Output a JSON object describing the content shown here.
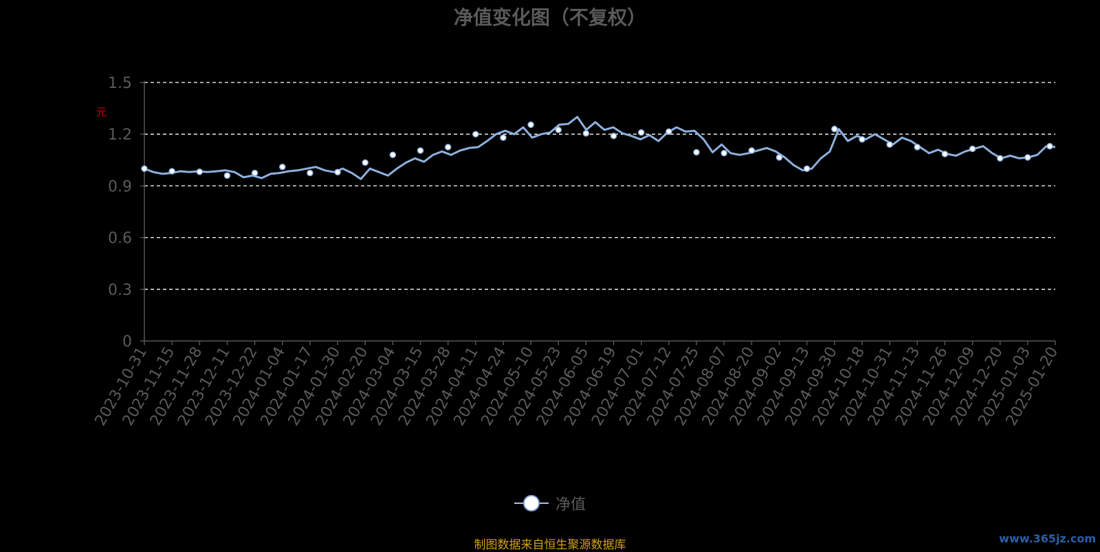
{
  "chart_data": {
    "type": "line",
    "title": "净值变化图（不复权）",
    "ylabel": "元",
    "ylim": [
      0,
      1.5
    ],
    "yticks": [
      "0",
      "0.3",
      "0.6",
      "0.9",
      "1.2",
      "1.5"
    ],
    "grid": true,
    "legend_position": "bottom",
    "x_tick_labels": [
      "2023-10-31",
      "2023-11-15",
      "2023-11-28",
      "2023-12-11",
      "2023-12-22",
      "2024-01-04",
      "2024-01-17",
      "2024-01-30",
      "2024-02-20",
      "2024-03-04",
      "2024-03-15",
      "2024-03-28",
      "2024-04-11",
      "2024-04-24",
      "2024-05-10",
      "2024-05-23",
      "2024-06-05",
      "2024-06-19",
      "2024-07-01",
      "2024-07-12",
      "2024-07-25",
      "2024-08-07",
      "2024-08-20",
      "2024-09-02",
      "2024-09-13",
      "2024-09-30",
      "2024-10-18",
      "2024-10-31",
      "2024-11-13",
      "2024-11-26",
      "2024-12-09",
      "2024-12-20",
      "2025-01-03",
      "2025-01-20"
    ],
    "series": [
      {
        "name": "净值",
        "marker_values": [
          1.0,
          0.985,
          0.982,
          0.96,
          0.975,
          1.01,
          0.975,
          0.98,
          1.035,
          1.08,
          1.105,
          1.125,
          1.2,
          1.18,
          1.255,
          1.225,
          1.205,
          1.19,
          1.21,
          1.215,
          1.095,
          1.09,
          1.105,
          1.065,
          1.0,
          1.23,
          1.17,
          1.14,
          1.125,
          1.085,
          1.115,
          1.06,
          1.065,
          1.13
        ],
        "values": [
          1.0,
          0.98,
          0.97,
          0.975,
          0.985,
          0.98,
          0.985,
          0.98,
          0.985,
          0.99,
          0.98,
          0.95,
          0.96,
          0.945,
          0.97,
          0.975,
          0.985,
          0.99,
          1.0,
          1.01,
          0.99,
          0.98,
          1.0,
          0.975,
          0.94,
          1.0,
          0.98,
          0.96,
          1.0,
          1.035,
          1.06,
          1.04,
          1.08,
          1.1,
          1.08,
          1.105,
          1.12,
          1.125,
          1.16,
          1.2,
          1.22,
          1.2,
          1.24,
          1.18,
          1.2,
          1.21,
          1.255,
          1.26,
          1.3,
          1.225,
          1.27,
          1.225,
          1.24,
          1.205,
          1.19,
          1.17,
          1.195,
          1.16,
          1.21,
          1.24,
          1.215,
          1.22,
          1.17,
          1.095,
          1.14,
          1.09,
          1.08,
          1.09,
          1.105,
          1.12,
          1.1,
          1.065,
          1.02,
          0.99,
          1.0,
          1.06,
          1.1,
          1.23,
          1.16,
          1.19,
          1.17,
          1.2,
          1.17,
          1.14,
          1.18,
          1.16,
          1.125,
          1.09,
          1.11,
          1.085,
          1.075,
          1.1,
          1.115,
          1.13,
          1.09,
          1.06,
          1.075,
          1.06,
          1.065,
          1.08,
          1.13,
          1.125
        ]
      }
    ]
  },
  "legend": {
    "label": "净值"
  },
  "source_text": "制图数据来自恒生聚源数据库",
  "watermark": "www.365jz.com",
  "colors": {
    "line": "#8eb0de",
    "marker_fill": "#ffffff",
    "grid": "#ffffff",
    "axis": "#555555",
    "tick_text": "#5a5a5a",
    "source": "#d4a017"
  }
}
